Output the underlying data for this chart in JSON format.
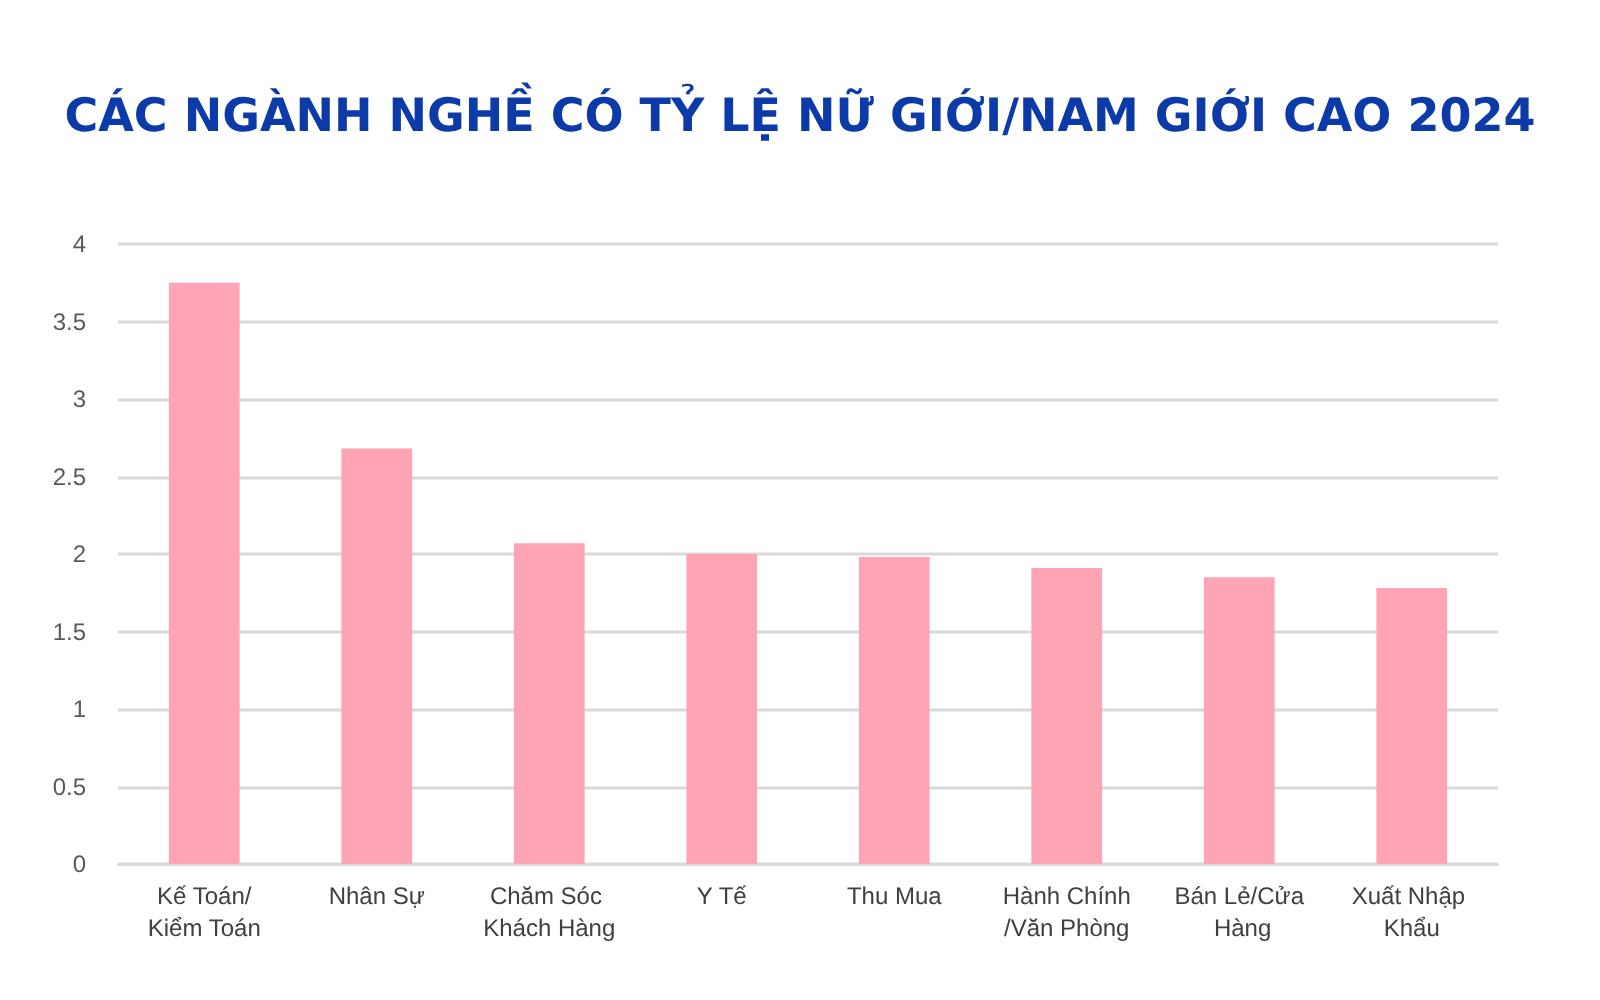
{
  "chart_data": {
    "type": "bar",
    "title": "CÁC NGÀNH NGHỀ CÓ TỶ LỆ NỮ GIỚI/NAM GIỚI CAO 2024",
    "categories": [
      "Kế Toán/Kiểm Toán",
      "Nhân Sự",
      "Chăm Sóc Khách Hàng",
      "Y Tế",
      "Thu Mua",
      "Hành Chính/Văn Phòng",
      "Bán Lẻ/Cửa Hàng",
      "Xuất Nhập Khẩu"
    ],
    "values": [
      3.75,
      2.68,
      2.07,
      2.0,
      1.98,
      1.91,
      1.85,
      1.78
    ],
    "color": "#ffa4b4",
    "ylim": [
      0,
      4
    ],
    "yticks": [
      0,
      0.5,
      1,
      1.5,
      2,
      2.5,
      3,
      3.5,
      4
    ],
    "grid": true
  }
}
